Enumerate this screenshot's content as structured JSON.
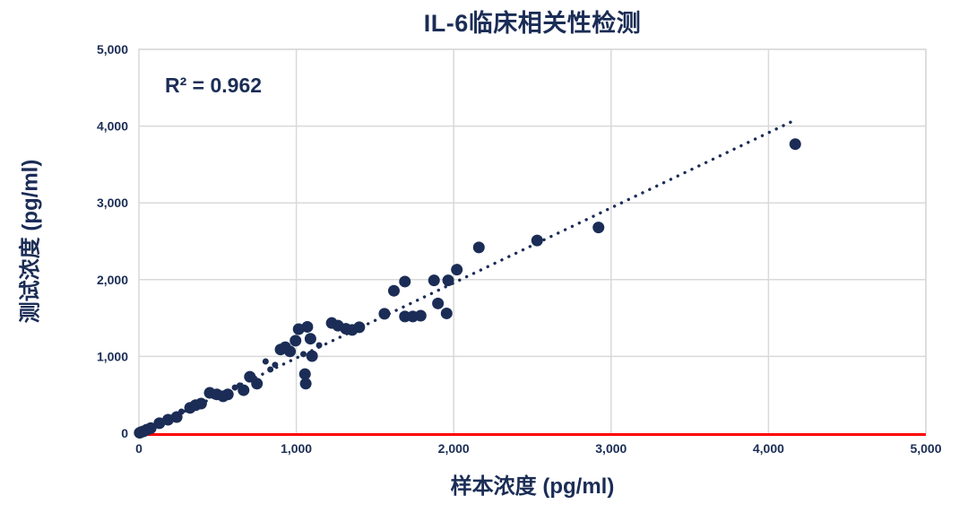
{
  "chart": {
    "title": "IL-6临床相关性检测",
    "annotation": "R² = 0.962",
    "xlabel": "样本浓度 (pg/ml)",
    "ylabel": "测试浓度 (pg/ml)"
  },
  "chart_data": {
    "type": "scatter",
    "title": "IL-6临床相关性检测",
    "xlabel": "样本浓度 (pg/ml)",
    "ylabel": "测试浓度 (pg/ml)",
    "annotation": "R² = 0.962",
    "r_squared": 0.962,
    "xlim": [
      0,
      5000
    ],
    "ylim": [
      0,
      5000
    ],
    "grid": true,
    "legend": "none",
    "xticks": {
      "values": [
        0,
        1000,
        2000,
        3000,
        4000,
        5000
      ],
      "labels": [
        "0",
        "1,000",
        "2,000",
        "3,000",
        "4,000",
        "5,000"
      ]
    },
    "yticks": {
      "values": [
        0,
        1000,
        2000,
        3000,
        4000,
        5000
      ],
      "labels": [
        "0",
        "1,000",
        "2,000",
        "3,000",
        "4,000",
        "5,000"
      ]
    },
    "point_radius": 6.5,
    "points": [
      [
        5,
        5
      ],
      [
        15,
        15
      ],
      [
        30,
        25
      ],
      [
        50,
        45
      ],
      [
        75,
        65
      ],
      [
        130,
        130
      ],
      [
        185,
        175
      ],
      [
        240,
        210
      ],
      [
        270,
        280,
        3.5
      ],
      [
        325,
        330
      ],
      [
        360,
        365
      ],
      [
        395,
        385
      ],
      [
        450,
        525
      ],
      [
        495,
        505
      ],
      [
        535,
        480
      ],
      [
        565,
        505
      ],
      [
        610,
        595,
        3.5
      ],
      [
        640,
        620,
        3.5
      ],
      [
        665,
        560
      ],
      [
        705,
        735
      ],
      [
        750,
        645
      ],
      [
        805,
        935,
        3.5
      ],
      [
        835,
        830,
        3.5
      ],
      [
        865,
        890,
        3.5
      ],
      [
        900,
        1090
      ],
      [
        930,
        1120
      ],
      [
        960,
        1065
      ],
      [
        995,
        1205
      ],
      [
        1015,
        1355
      ],
      [
        1045,
        1030,
        3.5
      ],
      [
        1055,
        770
      ],
      [
        1060,
        645
      ],
      [
        1070,
        1385
      ],
      [
        1090,
        1230
      ],
      [
        1100,
        1005
      ],
      [
        1145,
        1145,
        3.5
      ],
      [
        1225,
        1435
      ],
      [
        1265,
        1400
      ],
      [
        1315,
        1360
      ],
      [
        1355,
        1345
      ],
      [
        1400,
        1380
      ],
      [
        1560,
        1555
      ],
      [
        1620,
        1855
      ],
      [
        1690,
        1975
      ],
      [
        1690,
        1520
      ],
      [
        1740,
        1520
      ],
      [
        1790,
        1530
      ],
      [
        1875,
        1990
      ],
      [
        1900,
        1690
      ],
      [
        1955,
        1560
      ],
      [
        1965,
        1990
      ],
      [
        2020,
        2130
      ],
      [
        2160,
        2420
      ],
      [
        2530,
        2510
      ],
      [
        2920,
        2680
      ],
      [
        4170,
        3765
      ]
    ],
    "trendline": {
      "style": "dotted",
      "x1": 25,
      "y1": 25,
      "x2": 4170,
      "y2": 4080
    },
    "baseline": {
      "y": 0
    },
    "colors": {
      "marker": "#1b2d56",
      "text": "#1b2d56",
      "trend": "#1b2d56",
      "grid": "#d9d9d9",
      "baseline": "#ff0000",
      "background": "#ffffff"
    }
  }
}
